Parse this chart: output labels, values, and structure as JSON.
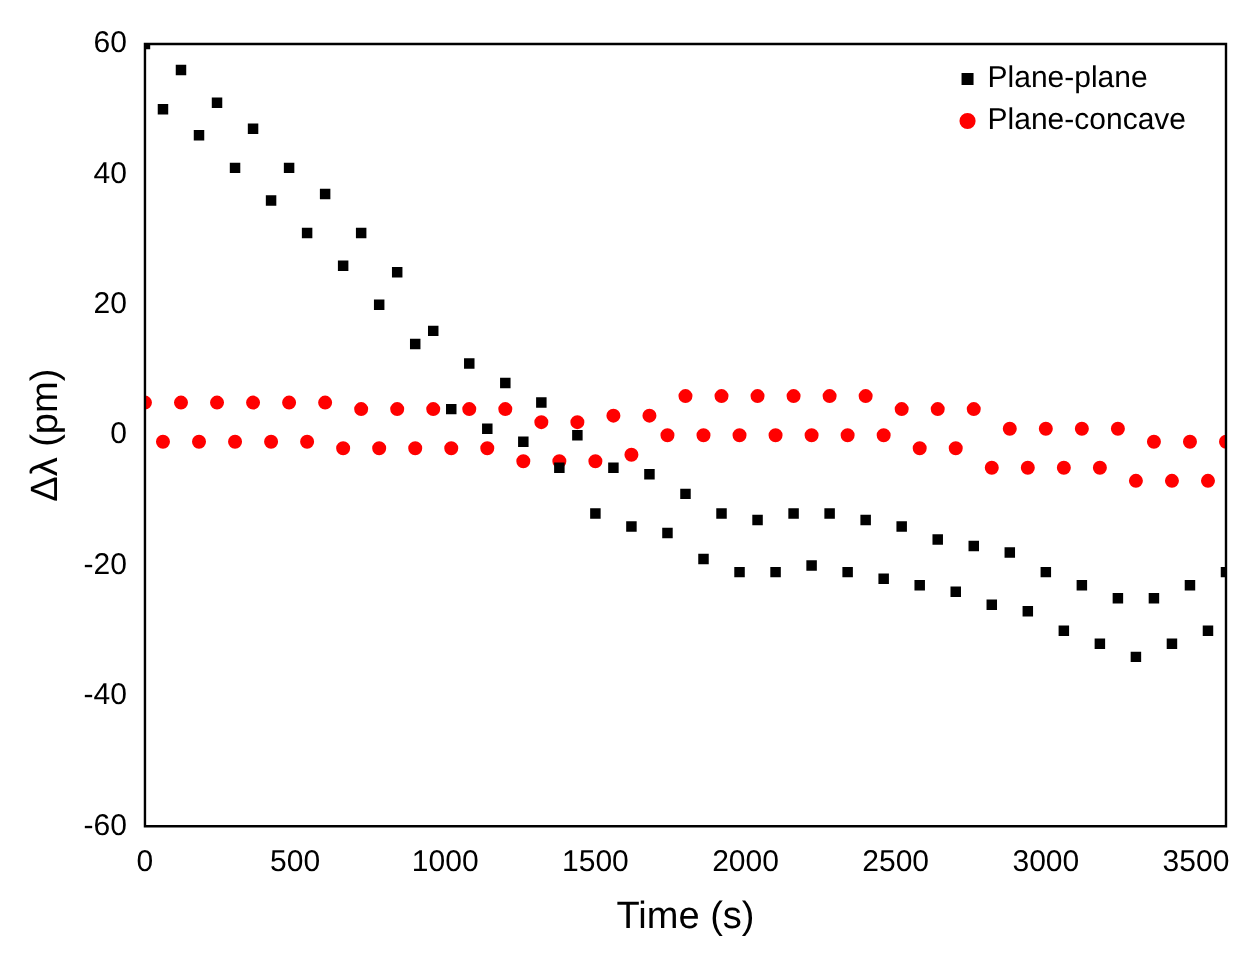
{
  "chart_data": {
    "type": "scatter",
    "xlabel": "Time (s)",
    "ylabel": "Δλ (pm)",
    "xlim": [
      0,
      3600
    ],
    "xticks": [
      0,
      500,
      1000,
      1500,
      2000,
      2500,
      3000,
      3500
    ],
    "ylim": [
      -60,
      60
    ],
    "yticks": [
      -60,
      -40,
      -20,
      0,
      20,
      40,
      60
    ],
    "grid": false,
    "legend": "top right",
    "x": [
      0,
      60,
      120,
      180,
      240,
      300,
      360,
      420,
      480,
      540,
      600,
      660,
      720,
      780,
      840,
      900,
      960,
      1020,
      1080,
      1140,
      1200,
      1260,
      1320,
      1380,
      1440,
      1500,
      1560,
      1620,
      1680,
      1740,
      1800,
      1860,
      1920,
      1980,
      2040,
      2100,
      2160,
      2220,
      2280,
      2340,
      2400,
      2460,
      2520,
      2580,
      2640,
      2700,
      2760,
      2820,
      2880,
      2940,
      3000,
      3060,
      3120,
      3180,
      3240,
      3300,
      3360,
      3420,
      3480,
      3540,
      3600
    ],
    "series": [
      {
        "name": "Plane-plane",
        "color": "#000000",
        "marker": "square",
        "values": [
          60,
          50,
          56,
          46,
          51,
          41,
          47,
          36,
          41,
          31,
          37,
          26,
          31,
          20,
          25,
          14,
          16,
          4,
          11,
          1,
          8,
          -1,
          5,
          -5,
          0,
          -12,
          -5,
          -14,
          -6,
          -15,
          -9,
          -19,
          -12,
          -21,
          -13,
          -21,
          -12,
          -20,
          -12,
          -21,
          -13,
          -22,
          -14,
          -23,
          -16,
          -24,
          -17,
          -26,
          -18,
          -27,
          -21,
          -30,
          -23,
          -32,
          -25,
          -34,
          -25,
          -32,
          -23,
          -30,
          -21
        ]
      },
      {
        "name": "Plane-concave",
        "color": "#ff0000",
        "marker": "circle",
        "values": [
          5,
          -1,
          5,
          -1,
          5,
          -1,
          5,
          -1,
          5,
          -1,
          5,
          -2,
          4,
          -2,
          4,
          -2,
          4,
          -2,
          4,
          -2,
          4,
          -4,
          2,
          -4,
          2,
          -4,
          3,
          -3,
          3,
          0,
          6,
          0,
          6,
          0,
          6,
          0,
          6,
          0,
          6,
          0,
          6,
          0,
          4,
          -2,
          4,
          -2,
          4,
          -5,
          1,
          -5,
          1,
          -5,
          1,
          -5,
          1,
          -7,
          -1,
          -7,
          -1,
          -7,
          -1
        ]
      }
    ]
  }
}
